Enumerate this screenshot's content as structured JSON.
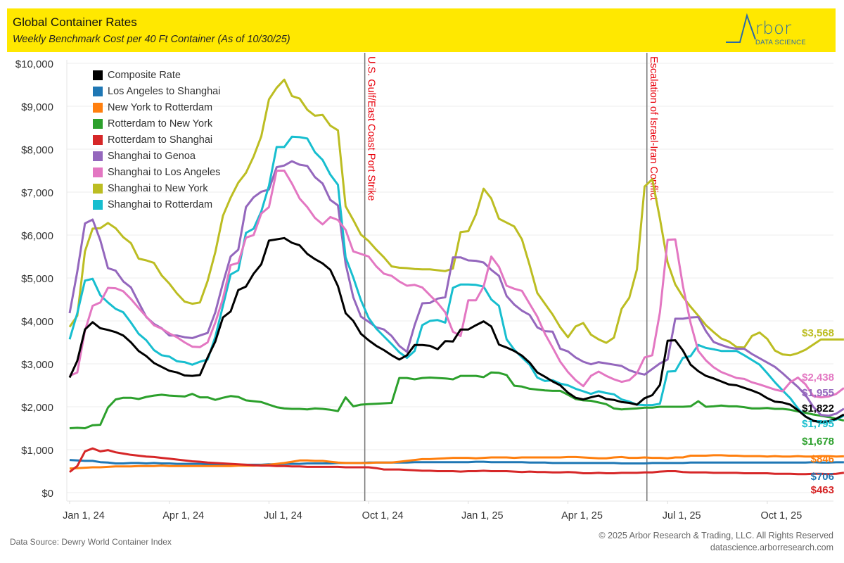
{
  "header": {
    "title": "Global Container Rates",
    "subtitle": "Weekly Benchmark Cost per 40 Ft Container (As of 10/30/25)",
    "logo_word": "rbor",
    "logo_sub": "DATA SCIENCE",
    "banner_color": "#ffe800"
  },
  "footer": {
    "source": "Data Source: Dewry World Container Index",
    "copyright": "© 2025 Arbor Research & Trading, LLC. All Rights Reserved",
    "website": "datascience.arborresearch.com"
  },
  "chart_data": {
    "type": "line",
    "title": "Global Container Rates",
    "subtitle": "Weekly Benchmark Cost per 40 Ft Container (As of 10/30/25)",
    "xlabel": "",
    "ylabel": "",
    "ylim": [
      0,
      10000
    ],
    "y_ticks": [
      0,
      1000,
      2000,
      3000,
      4000,
      5000,
      6000,
      7000,
      8000,
      9000,
      10000
    ],
    "y_tick_labels": [
      "$0",
      "$1,000",
      "$2,000",
      "$3,000",
      "$4,000",
      "$5,000",
      "$6,000",
      "$7,000",
      "$8,000",
      "$9,000",
      "$10,000"
    ],
    "x_start": "2024-01-04",
    "x_interval": "weekly",
    "x_ticks": [
      {
        "label": "Jan 1, 24",
        "week": 0
      },
      {
        "label": "Apr 1, 24",
        "week": 13
      },
      {
        "label": "Jul 1, 24",
        "week": 26
      },
      {
        "label": "Oct 1, 24",
        "week": 39
      },
      {
        "label": "Jan 1, 25",
        "week": 52
      },
      {
        "label": "Apr 1, 25",
        "week": 65
      },
      {
        "label": "Jul 1, 25",
        "week": 78
      },
      {
        "label": "Oct 1, 25",
        "week": 91
      }
    ],
    "grid": true,
    "legend_position": "top-left",
    "annotations": [
      {
        "label": "U.S. Gulf/East Coast Port Strike",
        "week": 38.5,
        "color": "#e8000b"
      },
      {
        "label": "Escalation of Israel-Iran Conflict",
        "week": 75.3,
        "color": "#e8000b"
      }
    ],
    "series": [
      {
        "name": "Composite Rate",
        "color": "#000000",
        "end_label": "$1,822",
        "values": [
          2680,
          3070,
          3800,
          3970,
          3830,
          3790,
          3740,
          3660,
          3500,
          3300,
          3180,
          3020,
          2930,
          2840,
          2800,
          2730,
          2720,
          2740,
          3150,
          3520,
          4080,
          4220,
          4720,
          4800,
          5100,
          5320,
          5870,
          5900,
          5930,
          5820,
          5760,
          5560,
          5440,
          5340,
          5190,
          4810,
          4180,
          4000,
          3700,
          3550,
          3420,
          3320,
          3200,
          3100,
          3200,
          3440,
          3440,
          3420,
          3340,
          3530,
          3520,
          3800,
          3800,
          3900,
          3990,
          3870,
          3450,
          3380,
          3300,
          3190,
          3030,
          2800,
          2700,
          2590,
          2500,
          2330,
          2210,
          2170,
          2220,
          2260,
          2180,
          2160,
          2110,
          2090,
          2050,
          2200,
          2270,
          2510,
          3540,
          3550,
          3310,
          2980,
          2830,
          2720,
          2660,
          2590,
          2520,
          2500,
          2440,
          2380,
          2310,
          2200,
          2120,
          2100,
          2050,
          1920,
          1770,
          1670,
          1650,
          1660,
          1720,
          1822
        ]
      },
      {
        "name": "Los Angeles to Shanghai",
        "color": "#1f77b4",
        "end_label": "$706",
        "values": [
          760,
          750,
          740,
          740,
          710,
          700,
          680,
          680,
          690,
          690,
          680,
          690,
          680,
          680,
          670,
          670,
          670,
          670,
          660,
          660,
          660,
          660,
          650,
          650,
          650,
          650,
          660,
          660,
          670,
          670,
          670,
          680,
          680,
          680,
          680,
          690,
          690,
          690,
          690,
          700,
          700,
          700,
          700,
          700,
          700,
          710,
          710,
          710,
          710,
          710,
          710,
          710,
          710,
          720,
          720,
          710,
          710,
          710,
          710,
          710,
          700,
          700,
          700,
          690,
          690,
          690,
          690,
          690,
          690,
          690,
          690,
          690,
          680,
          680,
          680,
          680,
          690,
          690,
          690,
          690,
          690,
          700,
          700,
          700,
          700,
          700,
          700,
          700,
          700,
          700,
          700,
          700,
          700,
          700,
          700,
          700,
          700,
          710,
          700,
          700,
          706,
          706
        ]
      },
      {
        "name": "New York to Rotterdam",
        "color": "#ff7f0e",
        "end_label": "$846",
        "values": [
          560,
          570,
          580,
          590,
          590,
          600,
          610,
          610,
          610,
          620,
          620,
          620,
          630,
          620,
          620,
          620,
          620,
          620,
          620,
          620,
          620,
          620,
          630,
          630,
          630,
          640,
          650,
          670,
          690,
          720,
          750,
          750,
          740,
          740,
          720,
          700,
          690,
          690,
          690,
          690,
          700,
          700,
          700,
          720,
          740,
          760,
          780,
          780,
          790,
          800,
          810,
          810,
          810,
          800,
          810,
          820,
          820,
          820,
          810,
          820,
          820,
          820,
          820,
          820,
          820,
          830,
          830,
          820,
          810,
          800,
          800,
          820,
          830,
          810,
          810,
          820,
          810,
          810,
          800,
          820,
          820,
          860,
          860,
          860,
          870,
          870,
          860,
          860,
          850,
          850,
          850,
          840,
          850,
          840,
          840,
          850,
          840,
          840,
          850,
          850,
          840,
          846
        ]
      },
      {
        "name": "Rotterdam to New York",
        "color": "#2ca02c",
        "end_label": "$1,678",
        "values": [
          1500,
          1510,
          1500,
          1570,
          1580,
          1980,
          2170,
          2210,
          2210,
          2180,
          2230,
          2260,
          2280,
          2260,
          2250,
          2240,
          2300,
          2220,
          2220,
          2160,
          2210,
          2250,
          2230,
          2150,
          2130,
          2110,
          2050,
          1990,
          1960,
          1950,
          1950,
          1940,
          1960,
          1950,
          1930,
          1900,
          2220,
          2010,
          2050,
          2060,
          2070,
          2080,
          2090,
          2670,
          2670,
          2640,
          2670,
          2680,
          2670,
          2660,
          2640,
          2720,
          2720,
          2720,
          2690,
          2800,
          2790,
          2740,
          2490,
          2470,
          2420,
          2400,
          2380,
          2370,
          2370,
          2280,
          2180,
          2150,
          2140,
          2100,
          2060,
          1960,
          1940,
          1950,
          1960,
          1980,
          1980,
          2000,
          2000,
          2000,
          2000,
          2010,
          2130,
          2000,
          2010,
          2030,
          2010,
          2010,
          1990,
          1960,
          1960,
          1970,
          1950,
          1950,
          1930,
          1890,
          1860,
          1820,
          1790,
          1760,
          1720,
          1678
        ]
      },
      {
        "name": "Rotterdam to Shanghai",
        "color": "#d62728",
        "end_label": "$463",
        "values": [
          480,
          620,
          960,
          1030,
          960,
          990,
          940,
          910,
          880,
          860,
          840,
          830,
          810,
          790,
          770,
          750,
          730,
          720,
          700,
          690,
          680,
          670,
          660,
          650,
          640,
          630,
          630,
          620,
          620,
          610,
          610,
          600,
          600,
          600,
          600,
          600,
          590,
          590,
          590,
          590,
          570,
          540,
          540,
          540,
          530,
          520,
          510,
          510,
          500,
          500,
          500,
          490,
          500,
          500,
          510,
          500,
          500,
          500,
          490,
          480,
          490,
          480,
          480,
          470,
          470,
          480,
          470,
          450,
          450,
          460,
          450,
          450,
          460,
          460,
          460,
          470,
          470,
          490,
          500,
          500,
          480,
          470,
          470,
          470,
          460,
          460,
          460,
          460,
          450,
          450,
          450,
          450,
          440,
          440,
          440,
          430,
          430,
          440,
          440,
          430,
          440,
          463
        ]
      },
      {
        "name": "Shanghai to Genoa",
        "color": "#9467bd",
        "end_label": "$1,955",
        "values": [
          4180,
          5150,
          6270,
          6360,
          5880,
          5230,
          5170,
          4920,
          4780,
          4430,
          4090,
          3930,
          3830,
          3660,
          3660,
          3620,
          3600,
          3660,
          3720,
          4200,
          4880,
          5500,
          5660,
          6650,
          6880,
          7010,
          7060,
          7580,
          7620,
          7720,
          7640,
          7610,
          7350,
          7200,
          6820,
          6690,
          5330,
          4550,
          4100,
          3980,
          3850,
          3800,
          3650,
          3420,
          3280,
          3900,
          4410,
          4420,
          4520,
          4550,
          5480,
          5480,
          5410,
          5400,
          5360,
          5190,
          5050,
          4580,
          4380,
          4240,
          4140,
          3850,
          3760,
          3750,
          3350,
          3290,
          3150,
          3050,
          2990,
          3040,
          3010,
          2980,
          2950,
          2850,
          2790,
          2750,
          2880,
          3010,
          3100,
          4050,
          4050,
          4080,
          4090,
          3760,
          3510,
          3440,
          3380,
          3350,
          3350,
          3230,
          3130,
          3030,
          2930,
          2780,
          2620,
          2460,
          2270,
          2000,
          1810,
          1790,
          1840,
          1955
        ]
      },
      {
        "name": "Shanghai to Los Angeles",
        "color": "#e377c2",
        "end_label": "$2,438",
        "values": [
          2720,
          2800,
          3770,
          4350,
          4430,
          4770,
          4760,
          4690,
          4510,
          4300,
          4100,
          3900,
          3820,
          3710,
          3620,
          3500,
          3400,
          3390,
          3500,
          3960,
          4520,
          5300,
          5350,
          5940,
          6000,
          6500,
          6650,
          7500,
          7500,
          7200,
          6850,
          6650,
          6400,
          6250,
          6420,
          6350,
          6120,
          5620,
          5560,
          5500,
          5270,
          5100,
          5050,
          4920,
          4820,
          4840,
          4780,
          4600,
          4420,
          4200,
          3750,
          3650,
          4480,
          4480,
          4800,
          5500,
          5260,
          4820,
          4750,
          4700,
          4400,
          4100,
          3700,
          3380,
          3050,
          2810,
          2620,
          2480,
          2720,
          2820,
          2720,
          2640,
          2580,
          2620,
          2780,
          3150,
          3200,
          4200,
          5890,
          5900,
          4810,
          3950,
          3300,
          3080,
          2920,
          2810,
          2740,
          2670,
          2650,
          2570,
          2520,
          2460,
          2400,
          2360,
          2570,
          2680,
          2520,
          2250,
          2220,
          2240,
          2300,
          2438
        ]
      },
      {
        "name": "Shanghai to New York",
        "color": "#bcbd22",
        "end_label": "$3,568",
        "values": [
          3860,
          4120,
          5620,
          6150,
          6160,
          6280,
          6160,
          5950,
          5810,
          5450,
          5410,
          5350,
          5060,
          4870,
          4640,
          4450,
          4400,
          4430,
          4930,
          5600,
          6450,
          6870,
          7220,
          7450,
          7830,
          8300,
          9160,
          9430,
          9620,
          9240,
          9180,
          8920,
          8780,
          8800,
          8550,
          8440,
          6670,
          6350,
          6010,
          5860,
          5660,
          5480,
          5270,
          5240,
          5230,
          5210,
          5200,
          5200,
          5180,
          5160,
          5220,
          6070,
          6090,
          6480,
          7080,
          6850,
          6380,
          6290,
          6200,
          5900,
          5300,
          4650,
          4400,
          4150,
          3850,
          3620,
          3870,
          3950,
          3680,
          3570,
          3490,
          3610,
          4280,
          4540,
          5200,
          7130,
          7300,
          6380,
          5360,
          4850,
          4560,
          4330,
          4120,
          3900,
          3740,
          3590,
          3520,
          3390,
          3380,
          3650,
          3730,
          3580,
          3310,
          3220,
          3200,
          3250,
          3330,
          3450,
          3568,
          3568,
          3568,
          3568
        ]
      },
      {
        "name": "Shanghai to Rotterdam",
        "color": "#17becf",
        "end_label": "$1,795",
        "values": [
          3570,
          4180,
          4940,
          4980,
          4600,
          4430,
          4280,
          4200,
          3960,
          3700,
          3550,
          3320,
          3200,
          3170,
          3060,
          3040,
          2980,
          3050,
          3100,
          3630,
          4350,
          5080,
          5180,
          6050,
          6150,
          6550,
          7150,
          8050,
          8050,
          8290,
          8280,
          8250,
          7930,
          7750,
          7410,
          7170,
          5480,
          5010,
          4480,
          4070,
          3820,
          3640,
          3460,
          3270,
          3140,
          3300,
          3900,
          4000,
          4020,
          3960,
          4770,
          4850,
          4850,
          4840,
          4800,
          4500,
          4350,
          3570,
          3330,
          3150,
          2980,
          2680,
          2600,
          2620,
          2540,
          2500,
          2420,
          2360,
          2300,
          2360,
          2320,
          2290,
          2170,
          2120,
          2050,
          2040,
          2040,
          2070,
          2820,
          2830,
          3140,
          3180,
          3440,
          3370,
          3340,
          3300,
          3300,
          3300,
          3200,
          3090,
          2980,
          2780,
          2570,
          2380,
          2200,
          1960,
          1770,
          1680,
          1620,
          1660,
          1700,
          1795
        ]
      }
    ]
  }
}
